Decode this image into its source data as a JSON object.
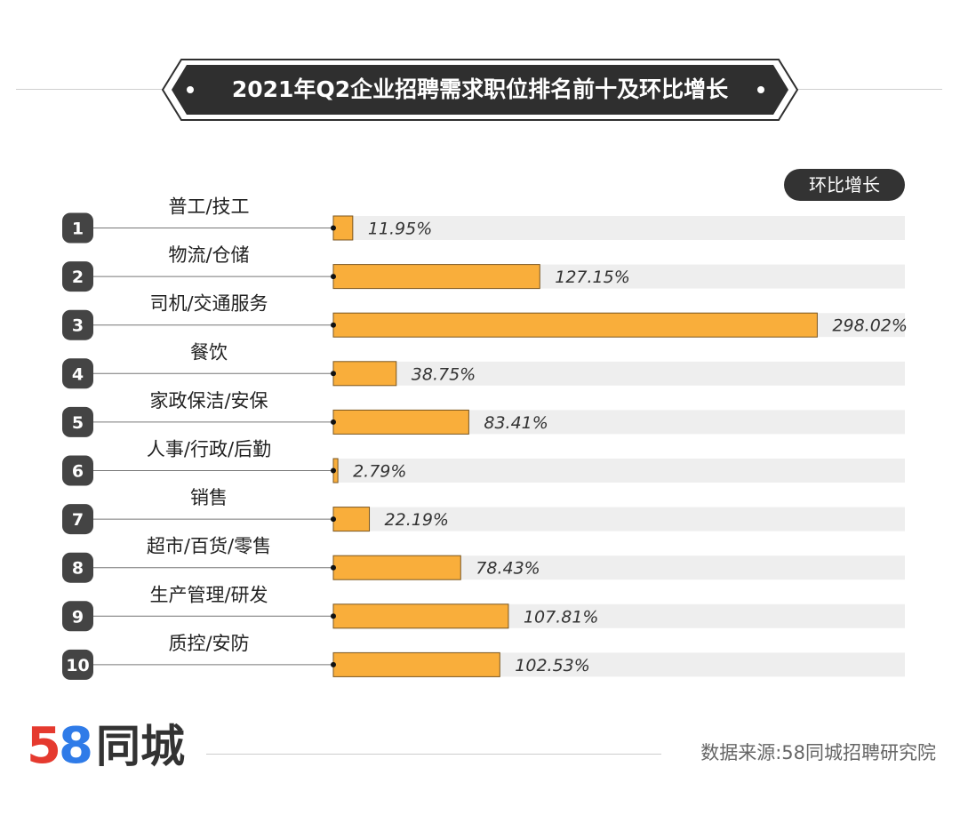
{
  "title": "2021年Q2企业招聘需求职位排名前十及环比增长",
  "badge_label": "环比增长",
  "logo": {
    "number": "58",
    "text": "同城"
  },
  "source": "数据来源:58同城招聘研究院",
  "colors": {
    "bar": "#f9ae3b",
    "bar_stroke": "#7a5620",
    "track": "#eeeeee",
    "rank_bg": "#444444",
    "title_bg": "#2f2f2f"
  },
  "chart_data": {
    "type": "bar",
    "orientation": "horizontal",
    "title": "2021年Q2企业招聘需求职位排名前十及环比增长",
    "legend": "环比增长",
    "ranks": [
      "1",
      "2",
      "3",
      "4",
      "5",
      "6",
      "7",
      "8",
      "9",
      "10"
    ],
    "categories": [
      "普工/技工",
      "物流/仓储",
      "司机/交通服务",
      "餐饮",
      "家政保洁/安保",
      "人事/行政/后勤",
      "销售",
      "超市/百货/零售",
      "生产管理/研发",
      "质控/安防"
    ],
    "values": [
      11.95,
      127.15,
      298.02,
      38.75,
      83.41,
      2.79,
      22.19,
      78.43,
      107.81,
      102.53
    ],
    "labels": [
      "11.95%",
      "127.15%",
      "298.02%",
      "38.75%",
      "83.41%",
      "2.79%",
      "22.19%",
      "78.43%",
      "107.81%",
      "102.53%"
    ],
    "unit": "%",
    "xlim": [
      0,
      352
    ]
  }
}
